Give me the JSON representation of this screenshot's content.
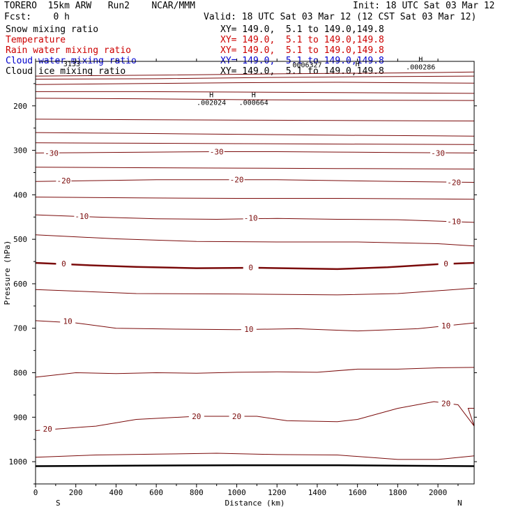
{
  "header": {
    "model_line": "TORERO  15km ARW   Run2    NCAR/MMM",
    "init": "Init: 18 UTC Sat 03 Mar 12",
    "fcst": "Fcst:    0 h",
    "valid": "Valid: 18 UTC Sat 03 Mar 12 (12 CST Sat 03 Mar 12)"
  },
  "fields": [
    {
      "name": "Snow mixing ratio",
      "xy": "",
      "color": "#000000"
    },
    {
      "name": "Temperature",
      "xy": "XY= 149.0,  5.1 to 149.0,149.8",
      "color": "#cc0000"
    },
    {
      "name": "Rain water mixing ratio",
      "xy": "XY= 149.0,  5.1 to 149.0,149.8",
      "color": "#cc0000"
    },
    {
      "name": "Cloud water mixing ratio",
      "xy": "XY= 149.0,  5.1 to 149.0,149.8",
      "color": "#0000cc"
    },
    {
      "name": "Cloud ice mixing ratio",
      "xy": "XY= 149.0,  5.1 to 149.0,149.8",
      "color": "#000000"
    }
  ],
  "snow_xy": "XY= 149.0,  5.1 to 149.0,149.8",
  "chart_data": {
    "type": "contour",
    "xlabel": "Distance (km)",
    "ylabel": "Pressure (hPa)",
    "xlim": [
      0,
      2180
    ],
    "ylim": [
      1050,
      100
    ],
    "x_ticks": [
      0,
      200,
      400,
      600,
      800,
      1000,
      1200,
      1400,
      1600,
      1800,
      2000
    ],
    "y_ticks": [
      200,
      300,
      400,
      500,
      600,
      700,
      800,
      900,
      1000
    ],
    "left_end": "S",
    "right_end": "N",
    "highs": [
      {
        "mark": "H",
        "value": ".002024",
        "x": 860,
        "p": 190
      },
      {
        "mark": "H",
        "value": ".000664",
        "x": 1070,
        "p": 190
      },
      {
        "mark": "H",
        "value": ".000286",
        "x": 1900,
        "p": 110
      }
    ],
    "top_labels": [
      {
        "text": "3133",
        "x": 180,
        "p": 105
      },
      {
        "text": "0006327",
        "x": 1350,
        "p": 107
      },
      {
        "text": "H",
        "x": 1600,
        "p": 105
      }
    ],
    "temperature_contours": [
      {
        "label": "-30",
        "points": [
          [
            0,
            306
          ],
          [
            300,
            305
          ],
          [
            600,
            304
          ],
          [
            900,
            303
          ],
          [
            1200,
            303
          ],
          [
            1500,
            304
          ],
          [
            1800,
            305
          ],
          [
            2180,
            306
          ]
        ],
        "label_at": [
          [
            80,
            306
          ],
          [
            900,
            303
          ],
          [
            2000,
            306
          ]
        ]
      },
      {
        "label": "-20",
        "points": [
          [
            0,
            370
          ],
          [
            300,
            368
          ],
          [
            600,
            366
          ],
          [
            900,
            366
          ],
          [
            1200,
            366
          ],
          [
            1500,
            368
          ],
          [
            1800,
            370
          ],
          [
            2180,
            372
          ]
        ],
        "label_at": [
          [
            140,
            368
          ],
          [
            1000,
            366
          ],
          [
            2080,
            372
          ]
        ]
      },
      {
        "label": "-10",
        "points": [
          [
            0,
            445
          ],
          [
            300,
            450
          ],
          [
            600,
            454
          ],
          [
            900,
            455
          ],
          [
            1200,
            453
          ],
          [
            1500,
            455
          ],
          [
            1800,
            456
          ],
          [
            2180,
            462
          ]
        ],
        "label_at": [
          [
            230,
            448
          ],
          [
            1070,
            452
          ],
          [
            2080,
            460
          ]
        ]
      },
      {
        "label": "0",
        "bold": true,
        "points": [
          [
            0,
            553
          ],
          [
            300,
            559
          ],
          [
            500,
            562
          ],
          [
            800,
            565
          ],
          [
            1100,
            564
          ],
          [
            1500,
            567
          ],
          [
            1750,
            563
          ],
          [
            2000,
            556
          ],
          [
            2180,
            553
          ]
        ],
        "label_at": [
          [
            140,
            555
          ],
          [
            1070,
            563
          ],
          [
            2040,
            555
          ]
        ]
      },
      {
        "label": "10",
        "points": [
          [
            0,
            683
          ],
          [
            200,
            688
          ],
          [
            400,
            700
          ],
          [
            700,
            702
          ],
          [
            1000,
            703
          ],
          [
            1300,
            701
          ],
          [
            1600,
            706
          ],
          [
            1900,
            701
          ],
          [
            2180,
            688
          ]
        ],
        "label_at": [
          [
            160,
            684
          ],
          [
            1060,
            702
          ],
          [
            2040,
            694
          ]
        ]
      },
      {
        "label": "20",
        "points": [
          [
            0,
            930
          ],
          [
            300,
            920
          ],
          [
            500,
            905
          ],
          [
            800,
            898
          ],
          [
            1100,
            898
          ],
          [
            1250,
            908
          ],
          [
            1500,
            910
          ],
          [
            1600,
            905
          ],
          [
            1800,
            880
          ],
          [
            1980,
            865
          ],
          [
            2100,
            872
          ],
          [
            2180,
            920
          ]
        ],
        "label_at": [
          [
            60,
            926
          ],
          [
            800,
            898
          ],
          [
            1000,
            898
          ],
          [
            2040,
            869
          ]
        ]
      }
    ],
    "other_contours": [
      {
        "points": [
          [
            0,
            133
          ],
          [
            600,
            131
          ],
          [
            1200,
            128
          ],
          [
            1800,
            126
          ],
          [
            2180,
            124
          ]
        ]
      },
      {
        "points": [
          [
            0,
            140
          ],
          [
            600,
            139
          ],
          [
            1200,
            136
          ],
          [
            1800,
            134
          ],
          [
            2180,
            133
          ]
        ]
      },
      {
        "points": [
          [
            0,
            152
          ],
          [
            500,
            150
          ],
          [
            1000,
            148
          ],
          [
            1500,
            147
          ],
          [
            2180,
            149
          ]
        ]
      },
      {
        "points": [
          [
            0,
            168
          ],
          [
            500,
            168
          ],
          [
            1000,
            169
          ],
          [
            1500,
            170
          ],
          [
            2180,
            172
          ]
        ]
      },
      {
        "points": [
          [
            0,
            183
          ],
          [
            500,
            184
          ],
          [
            1000,
            186
          ],
          [
            1500,
            187
          ],
          [
            2180,
            188
          ]
        ]
      },
      {
        "points": [
          [
            0,
            230
          ],
          [
            500,
            231
          ],
          [
            1000,
            232
          ],
          [
            1500,
            233
          ],
          [
            2180,
            234
          ]
        ]
      },
      {
        "points": [
          [
            0,
            260
          ],
          [
            500,
            262
          ],
          [
            1000,
            264
          ],
          [
            1500,
            266
          ],
          [
            2180,
            268
          ]
        ]
      },
      {
        "points": [
          [
            0,
            283
          ],
          [
            500,
            284
          ],
          [
            1000,
            285
          ],
          [
            1500,
            286
          ],
          [
            2180,
            287
          ]
        ]
      },
      {
        "points": [
          [
            0,
            338
          ],
          [
            500,
            339
          ],
          [
            1000,
            340
          ],
          [
            1500,
            341
          ],
          [
            2180,
            342
          ]
        ]
      },
      {
        "points": [
          [
            0,
            405
          ],
          [
            500,
            407
          ],
          [
            1000,
            408
          ],
          [
            1500,
            408
          ],
          [
            2180,
            410
          ]
        ]
      },
      {
        "points": [
          [
            0,
            490
          ],
          [
            400,
            499
          ],
          [
            800,
            505
          ],
          [
            1200,
            506
          ],
          [
            1600,
            506
          ],
          [
            2000,
            510
          ],
          [
            2180,
            515
          ]
        ]
      },
      {
        "points": [
          [
            0,
            613
          ],
          [
            500,
            622
          ],
          [
            1000,
            623
          ],
          [
            1500,
            625
          ],
          [
            1800,
            622
          ],
          [
            2180,
            610
          ]
        ]
      },
      {
        "points": [
          [
            0,
            810
          ],
          [
            200,
            800
          ],
          [
            400,
            802
          ],
          [
            600,
            800
          ],
          [
            800,
            801
          ],
          [
            1000,
            799
          ],
          [
            1200,
            798
          ],
          [
            1400,
            799
          ],
          [
            1600,
            792
          ],
          [
            1800,
            792
          ],
          [
            2000,
            789
          ],
          [
            2180,
            788
          ]
        ]
      },
      {
        "points": [
          [
            0,
            990
          ],
          [
            300,
            985
          ],
          [
            600,
            983
          ],
          [
            900,
            981
          ],
          [
            1200,
            984
          ],
          [
            1500,
            985
          ],
          [
            1800,
            995
          ],
          [
            2000,
            995
          ],
          [
            2180,
            987
          ]
        ]
      }
    ],
    "surface_line": {
      "points": [
        [
          0,
          1010
        ],
        [
          500,
          1009
        ],
        [
          1000,
          1008
        ],
        [
          1500,
          1008
        ],
        [
          2180,
          1010
        ]
      ]
    }
  }
}
